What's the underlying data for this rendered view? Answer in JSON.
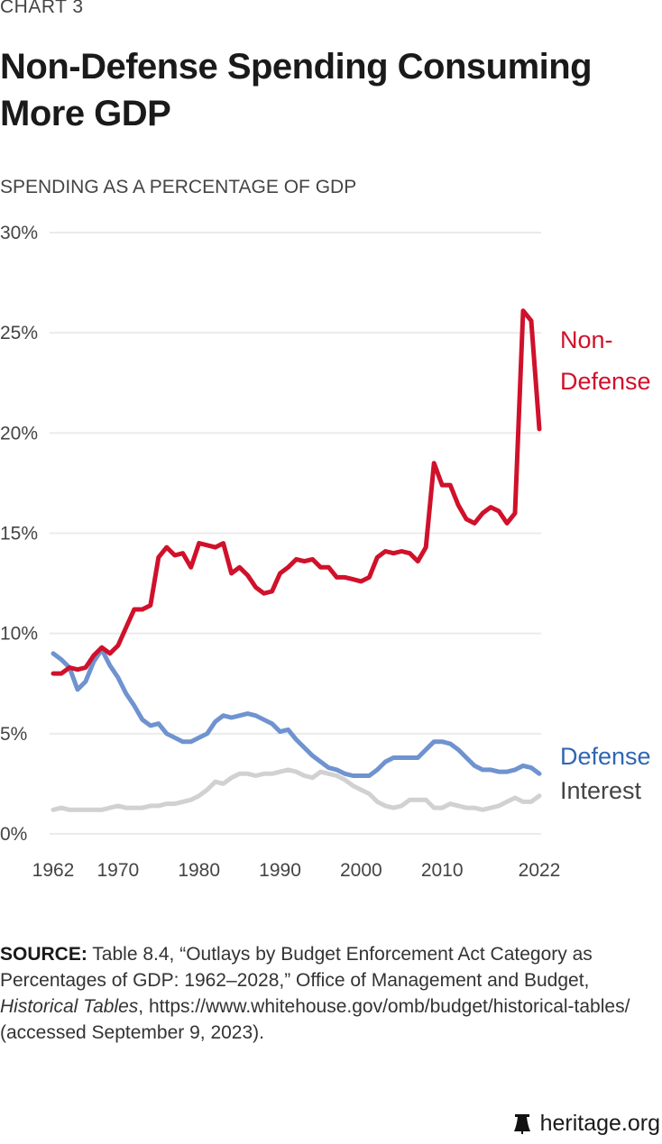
{
  "kicker": "CHART 3",
  "title": "Non-Defense Spending Consuming More GDP",
  "source": {
    "label": "SOURCE:",
    "text_1": " Table 8.4, “Outlays by Budget Enforcement Act Category as Percentages of GDP: 1962–2028,” Office of Management and Budget, ",
    "italic": "Historical Tables",
    "text_2": ", https://www.whitehouse.gov/omb/budget/historical-tables/ (accessed September 9, 2023)."
  },
  "footer": {
    "brand": "heritage.org",
    "icon": "liberty-bell-icon"
  },
  "chart_data": {
    "type": "line",
    "title": "Non-Defense Spending Consuming More GDP",
    "ylabel": "SPENDING AS A PERCENTAGE OF GDP",
    "xlabel": "",
    "ylim": [
      0,
      30
    ],
    "xlim": [
      1962,
      2022
    ],
    "yticks": [
      "0%",
      "5%",
      "10%",
      "15%",
      "20%",
      "25%",
      "30%"
    ],
    "ytick_values": [
      0,
      5,
      10,
      15,
      20,
      25,
      30
    ],
    "xticks": [
      "1962",
      "1970",
      "1980",
      "1990",
      "2000",
      "2010",
      "2022"
    ],
    "xtick_values": [
      1962,
      1970,
      1980,
      1990,
      2000,
      2010,
      2022
    ],
    "grid": true,
    "x_start": 1962,
    "series": [
      {
        "name": "Non-Defense",
        "label_lines": [
          "Non-",
          "Defense"
        ],
        "color": "#d0112b",
        "label_color": "#d0112b",
        "values": [
          8.0,
          8.0,
          8.3,
          8.2,
          8.3,
          8.9,
          9.3,
          9.0,
          9.4,
          10.3,
          11.2,
          11.2,
          11.4,
          13.8,
          14.3,
          13.9,
          14.0,
          13.3,
          14.5,
          14.4,
          14.3,
          14.5,
          13.0,
          13.3,
          12.9,
          12.3,
          12.0,
          12.1,
          13.0,
          13.3,
          13.7,
          13.6,
          13.7,
          13.3,
          13.3,
          12.8,
          12.8,
          12.7,
          12.6,
          12.8,
          13.8,
          14.1,
          14.0,
          14.1,
          14.0,
          13.6,
          14.3,
          18.5,
          17.4,
          17.4,
          16.4,
          15.7,
          15.5,
          16.0,
          16.3,
          16.1,
          15.5,
          16.0,
          26.1,
          25.6,
          20.2
        ]
      },
      {
        "name": "Defense",
        "label_lines": [
          "Defense"
        ],
        "color": "#6f93cf",
        "label_color": "#2f66b3",
        "values": [
          9.0,
          8.7,
          8.3,
          7.2,
          7.6,
          8.6,
          9.2,
          8.4,
          7.8,
          7.0,
          6.4,
          5.7,
          5.4,
          5.5,
          5.0,
          4.8,
          4.6,
          4.6,
          4.8,
          5.0,
          5.6,
          5.9,
          5.8,
          5.9,
          6.0,
          5.9,
          5.7,
          5.5,
          5.1,
          5.2,
          4.7,
          4.3,
          3.9,
          3.6,
          3.3,
          3.2,
          3.0,
          2.9,
          2.9,
          2.9,
          3.2,
          3.6,
          3.8,
          3.8,
          3.8,
          3.8,
          4.2,
          4.6,
          4.6,
          4.5,
          4.2,
          3.8,
          3.4,
          3.2,
          3.2,
          3.1,
          3.1,
          3.2,
          3.4,
          3.3,
          3.0
        ]
      },
      {
        "name": "Interest",
        "label_lines": [
          "Interest"
        ],
        "color": "#d1d1d1",
        "label_color": "#444444",
        "values": [
          1.2,
          1.3,
          1.2,
          1.2,
          1.2,
          1.2,
          1.2,
          1.3,
          1.4,
          1.3,
          1.3,
          1.3,
          1.4,
          1.4,
          1.5,
          1.5,
          1.6,
          1.7,
          1.9,
          2.2,
          2.6,
          2.5,
          2.8,
          3.0,
          3.0,
          2.9,
          3.0,
          3.0,
          3.1,
          3.2,
          3.1,
          2.9,
          2.8,
          3.1,
          3.0,
          2.9,
          2.7,
          2.4,
          2.2,
          2.0,
          1.6,
          1.4,
          1.3,
          1.4,
          1.7,
          1.7,
          1.7,
          1.3,
          1.3,
          1.5,
          1.4,
          1.3,
          1.3,
          1.2,
          1.3,
          1.4,
          1.6,
          1.8,
          1.6,
          1.6,
          1.9
        ]
      }
    ]
  }
}
